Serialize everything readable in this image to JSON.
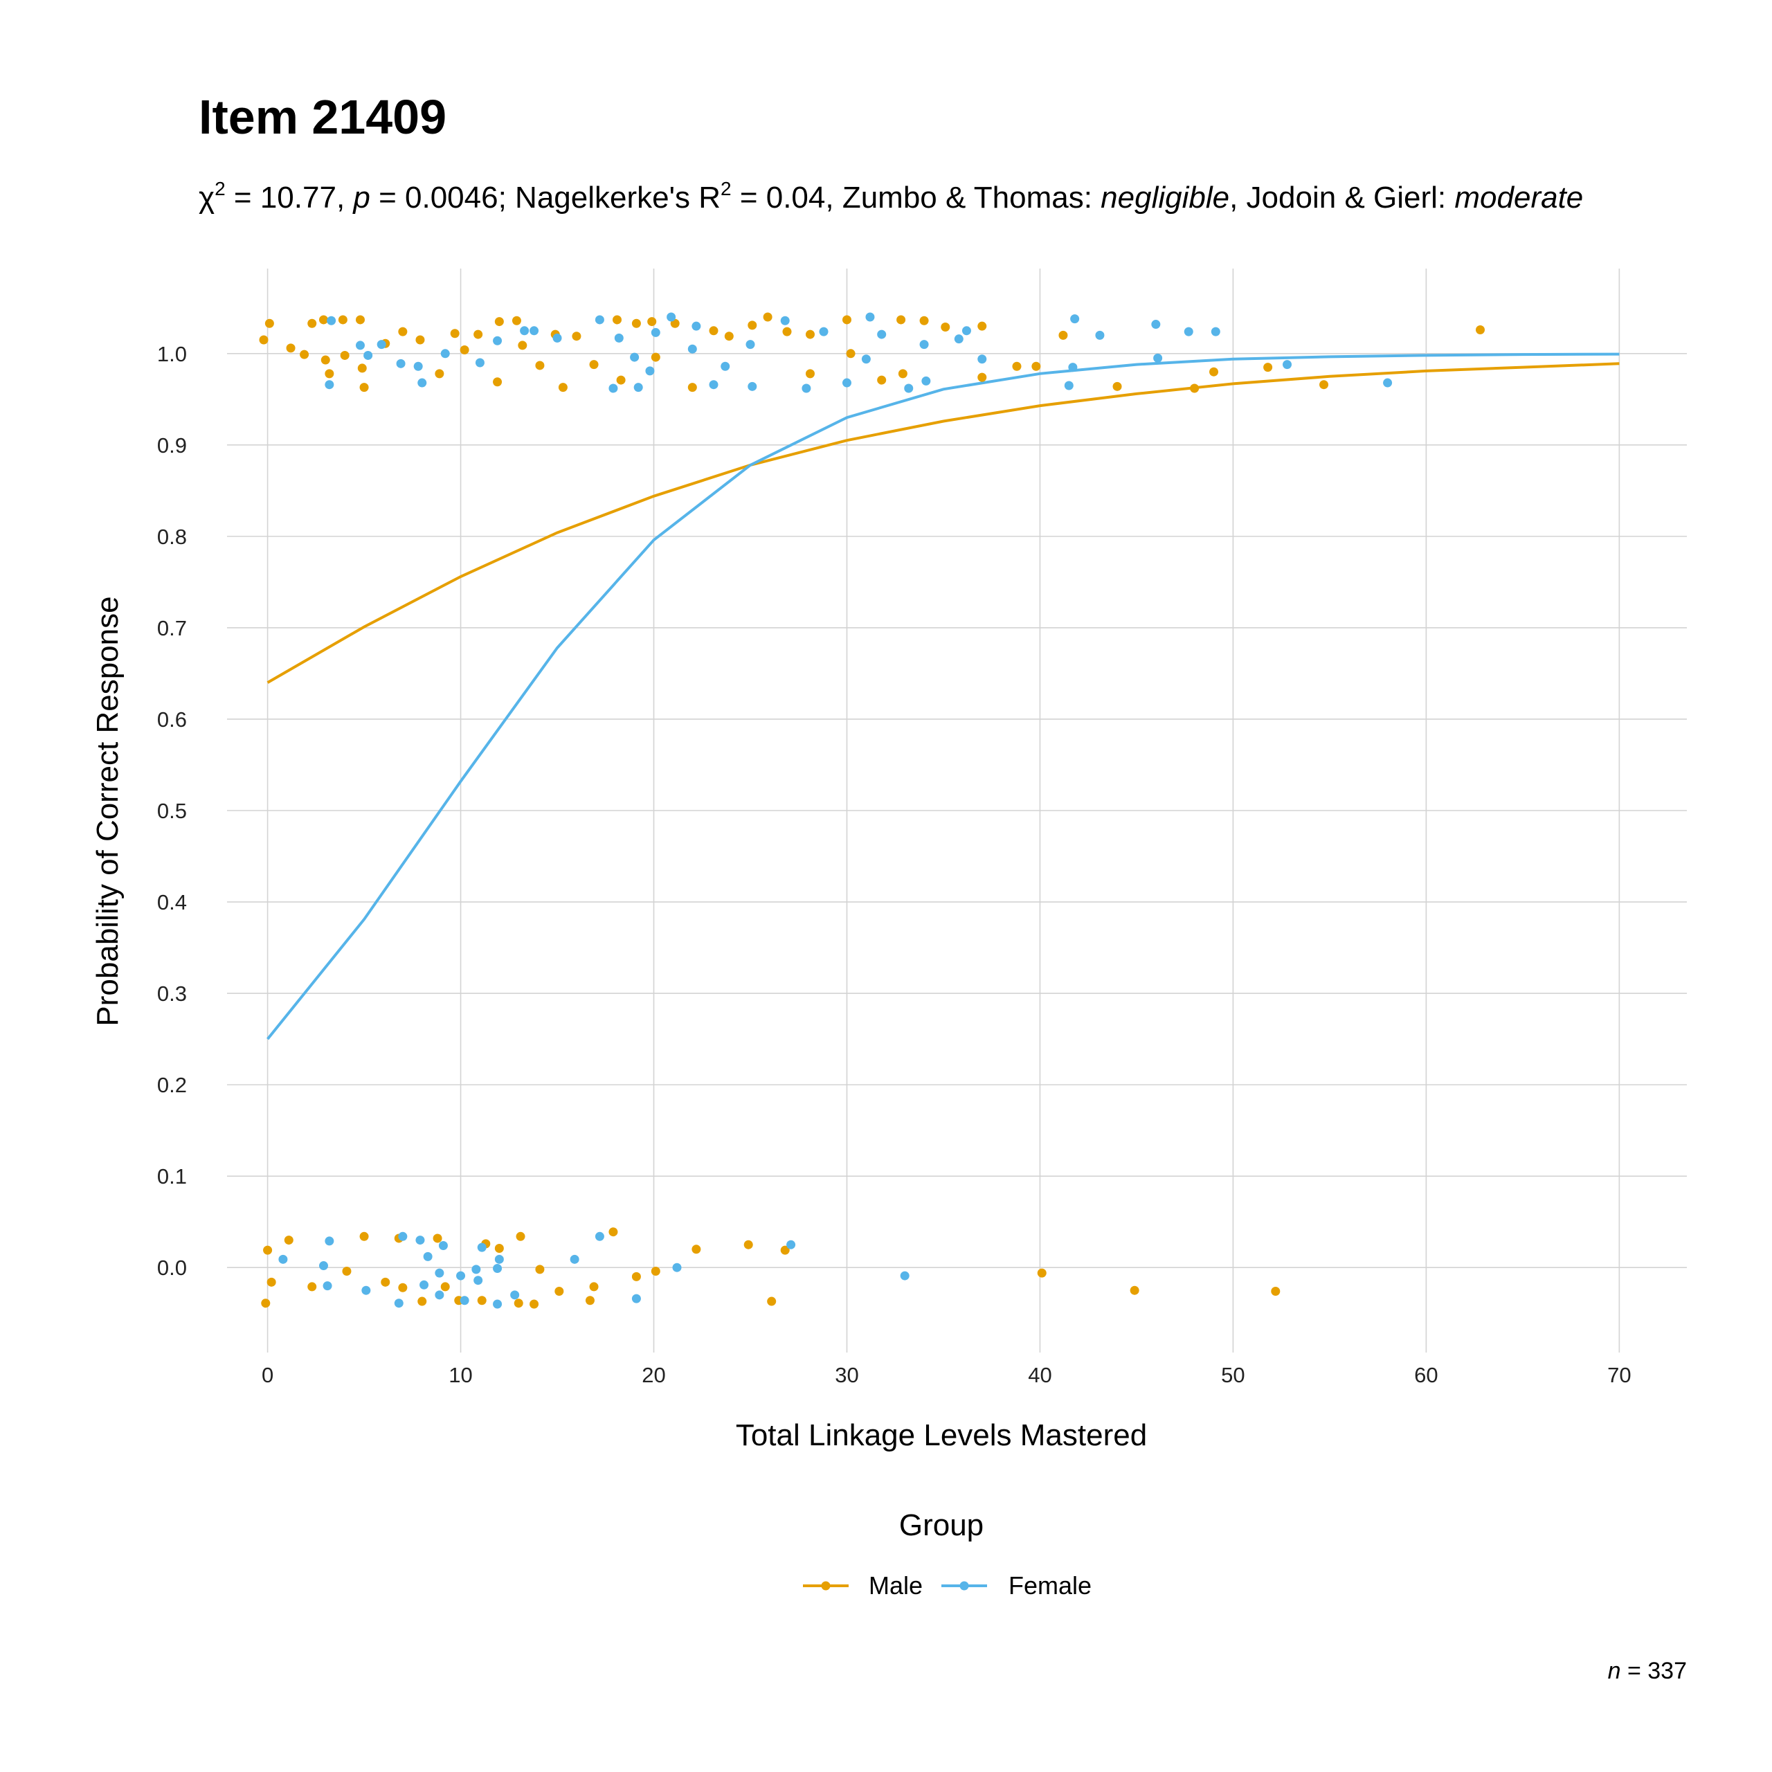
{
  "chart_data": {
    "type": "scatter",
    "title": "Item 21409",
    "subtitle": [
      "χ",
      "2",
      " = 10.77, ",
      "p",
      " = 0.0046; Nagelkerke's R",
      "2",
      " = 0.04, Zumbo & Thomas: ",
      "negligible",
      ", Jodoin & Gierl: ",
      "moderate"
    ],
    "x_label": "Total Linkage Levels Mastered",
    "y_label": "Probability of Correct Response",
    "legend_title": "Group",
    "caption": [
      "n",
      " = 337"
    ],
    "xlim": [
      -2.1,
      73.5
    ],
    "ylim": [
      -0.093,
      1.093
    ],
    "xticks": [
      0,
      10,
      20,
      30,
      40,
      50,
      60,
      70
    ],
    "yticks": [
      {
        "value": 0,
        "label": "0.0"
      },
      0.1,
      0.2,
      0.3,
      0.4,
      0.5,
      0.6,
      0.7,
      0.8,
      0.9,
      {
        "value": 1,
        "label": "1.0"
      }
    ],
    "grid": true,
    "series": [
      {
        "name": "Male",
        "color": "#e69f00",
        "x": [
          -0.2,
          0.1,
          1.2,
          1.9,
          2.3,
          2.9,
          3.0,
          3.2,
          3.9,
          4.0,
          4.8,
          4.9,
          5.0,
          6.1,
          7.0,
          7.9,
          8.9,
          9.7,
          10.2,
          10.9,
          11.9,
          12.0,
          12.9,
          13.2,
          14.1,
          14.9,
          15.3,
          16.0,
          16.9,
          18.1,
          18.3,
          19.1,
          19.9,
          20.1,
          21.1,
          22.0,
          23.1,
          23.9,
          25.1,
          25.9,
          26.9,
          28.1,
          28.1,
          30.0,
          30.2,
          31.8,
          32.8,
          32.9,
          34.0,
          35.1,
          37.0,
          37.0,
          38.8,
          39.8,
          41.2,
          44.0,
          48.0,
          49.0,
          51.8,
          54.7,
          62.8,
          0,
          -0.1,
          0.2,
          1.1,
          2.3,
          4.1,
          5.0,
          6.1,
          6.8,
          7.0,
          8.0,
          8.8,
          9.2,
          9.9,
          11.1,
          11.3,
          12.0,
          13.0,
          13.1,
          13.8,
          14.1,
          15.1,
          16.7,
          16.9,
          17.9,
          19.1,
          20.1,
          22.2,
          24.9,
          26.1,
          26.8,
          40.1,
          44.9,
          52.2
        ],
        "values": [
          1.015,
          1.033,
          1.006,
          0.999,
          1.033,
          1.037,
          0.993,
          0.978,
          1.037,
          0.998,
          1.037,
          0.984,
          0.963,
          1.011,
          1.024,
          1.015,
          0.978,
          1.022,
          1.004,
          1.021,
          0.969,
          1.035,
          1.036,
          1.009,
          0.987,
          1.021,
          0.963,
          1.019,
          0.988,
          1.037,
          0.971,
          1.033,
          1.035,
          0.996,
          1.033,
          0.963,
          1.025,
          1.019,
          1.031,
          1.04,
          1.024,
          1.021,
          0.978,
          1.037,
          1.0,
          0.971,
          1.037,
          0.978,
          1.036,
          1.029,
          1.03,
          0.974,
          0.986,
          0.986,
          1.02,
          0.964,
          0.962,
          0.98,
          0.985,
          0.966,
          1.026,
          0.019,
          -0.039,
          -0.016,
          0.03,
          -0.021,
          -0.004,
          0.034,
          -0.016,
          0.032,
          -0.022,
          -0.037,
          0.032,
          -0.021,
          -0.036,
          -0.036,
          0.026,
          0.021,
          -0.039,
          0.034,
          -0.04,
          -0.002,
          -0.026,
          -0.036,
          -0.021,
          0.039,
          -0.01,
          -0.004,
          0.02,
          0.025,
          -0.037,
          0.019,
          -0.006,
          -0.025,
          -0.026
        ],
        "curve_x": [
          0,
          5,
          10,
          15,
          20,
          25,
          30,
          35,
          40,
          45,
          50,
          55,
          60,
          65,
          70
        ],
        "curve_values": [
          0.64,
          0.701,
          0.756,
          0.804,
          0.844,
          0.878,
          0.905,
          0.926,
          0.943,
          0.956,
          0.967,
          0.975,
          0.981,
          0.985,
          0.989
        ]
      },
      {
        "name": "Female",
        "color": "#56b4e9",
        "x": [
          3.2,
          3.3,
          4.8,
          5.2,
          5.9,
          6.9,
          7.8,
          8.0,
          9.2,
          11.0,
          11.9,
          13.3,
          13.8,
          15.0,
          17.2,
          17.9,
          18.2,
          19.0,
          19.2,
          19.8,
          20.1,
          20.9,
          22.0,
          22.2,
          23.1,
          23.7,
          25.1,
          25.0,
          26.8,
          27.9,
          28.8,
          30.0,
          31.0,
          31.2,
          31.8,
          33.2,
          34.0,
          34.1,
          35.8,
          36.2,
          37.0,
          41.5,
          41.8,
          41.7,
          43.1,
          46.0,
          46.1,
          47.7,
          49.1,
          52.8,
          58.0,
          0.8,
          2.9,
          3.2,
          3.1,
          5.1,
          6.8,
          7.0,
          7.9,
          8.1,
          8.3,
          8.9,
          8.9,
          9.1,
          10.0,
          10.2,
          10.8,
          10.9,
          11.1,
          11.9,
          12.0,
          11.9,
          12.8,
          15.9,
          17.2,
          19.1,
          21.2,
          27.1,
          33.0
        ],
        "values": [
          0.966,
          1.036,
          1.009,
          0.998,
          1.01,
          0.989,
          0.986,
          0.968,
          1.0,
          0.99,
          1.014,
          1.025,
          1.025,
          1.017,
          1.037,
          0.962,
          1.017,
          0.996,
          0.963,
          0.981,
          1.023,
          1.04,
          1.005,
          1.03,
          0.966,
          0.986,
          0.964,
          1.01,
          1.036,
          0.962,
          1.024,
          0.968,
          0.994,
          1.04,
          1.021,
          0.962,
          1.01,
          0.97,
          1.016,
          1.025,
          0.994,
          0.965,
          1.038,
          0.985,
          1.02,
          1.032,
          0.995,
          1.024,
          1.024,
          0.988,
          0.968,
          0.009,
          0.002,
          0.029,
          -0.02,
          -0.025,
          -0.039,
          0.034,
          0.03,
          -0.019,
          0.012,
          -0.006,
          -0.03,
          0.024,
          -0.009,
          -0.036,
          -0.002,
          -0.014,
          0.022,
          -0.001,
          0.009,
          -0.04,
          -0.03,
          0.009,
          0.034,
          -0.034,
          0.0,
          0.025,
          -0.009
        ],
        "curve_x": [
          0,
          5,
          10,
          15,
          20,
          25,
          30,
          35,
          40,
          45,
          50,
          55,
          60,
          65,
          70
        ],
        "curve_values": [
          0.25,
          0.381,
          0.532,
          0.678,
          0.796,
          0.878,
          0.93,
          0.961,
          0.978,
          0.988,
          0.994,
          0.9965,
          0.998,
          0.999,
          0.9994
        ]
      }
    ]
  }
}
